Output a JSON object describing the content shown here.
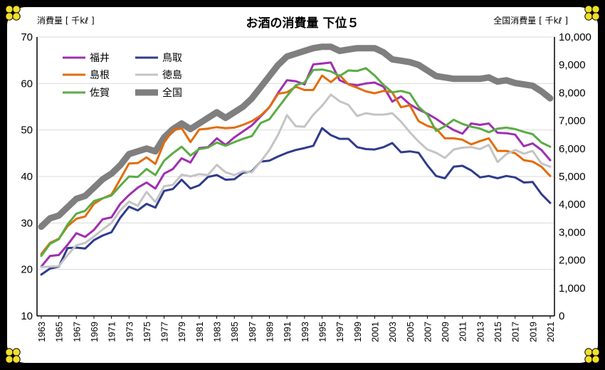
{
  "chart_data": {
    "type": "line",
    "title": "お酒の消費量 下位５",
    "ylabel_left": "消費量 [ 千kℓ ]",
    "ylabel_right": "全国消費量 [ 千kℓ ]",
    "ylim_left": [
      10,
      70
    ],
    "ylim_right": [
      0,
      10000
    ],
    "left_ticks": [
      "10",
      "20",
      "30",
      "40",
      "50",
      "60",
      "70"
    ],
    "right_ticks": [
      "0",
      "1,000",
      "2,000",
      "3,000",
      "4,000",
      "5,000",
      "6,000",
      "7,000",
      "8,000",
      "9,000",
      "10,000"
    ],
    "x_tick_labels": [
      "1963",
      "1965",
      "1967",
      "1969",
      "1971",
      "1973",
      "1975",
      "1977",
      "1979",
      "1981",
      "1983",
      "1985",
      "1987",
      "1989",
      "1991",
      "1993",
      "1995",
      "1997",
      "1999",
      "2001",
      "2003",
      "2005",
      "2007",
      "2009",
      "2011",
      "2013",
      "2015",
      "2017",
      "2019",
      "2021"
    ],
    "grid": true,
    "legend_position": "top-left",
    "x": [
      1963,
      1964,
      1965,
      1966,
      1967,
      1968,
      1969,
      1970,
      1971,
      1972,
      1973,
      1974,
      1975,
      1976,
      1977,
      1978,
      1979,
      1980,
      1981,
      1982,
      1983,
      1984,
      1985,
      1986,
      1987,
      1988,
      1989,
      1990,
      1991,
      1992,
      1993,
      1994,
      1995,
      1996,
      1997,
      1998,
      1999,
      2000,
      2001,
      2002,
      2003,
      2004,
      2005,
      2006,
      2007,
      2008,
      2009,
      2010,
      2011,
      2012,
      2013,
      2014,
      2015,
      2016,
      2017,
      2018,
      2019,
      2020,
      2021
    ],
    "series": [
      {
        "name": "福井",
        "axis": "left",
        "color": "#9e2fb0",
        "values": [
          20.6,
          22.9,
          23.1,
          25.3,
          27.8,
          27.0,
          28.5,
          30.8,
          31.2,
          34.1,
          36.0,
          37.6,
          38.7,
          37.4,
          40.6,
          41.6,
          43.9,
          43.0,
          46.1,
          46.3,
          48.2,
          46.8,
          48.4,
          49.7,
          51.0,
          52.9,
          54.9,
          58.0,
          60.7,
          60.5,
          59.8,
          64.1,
          64.3,
          64.5,
          60.7,
          59.9,
          59.6,
          60.0,
          60.2,
          59.3,
          56.1,
          57.2,
          55.5,
          54.4,
          53.5,
          52.4,
          51.1,
          50.0,
          49.2,
          51.4,
          51.1,
          51.4,
          49.4,
          49.3,
          49.0,
          46.5,
          47.1,
          45.7,
          43.5
        ]
      },
      {
        "name": "島根",
        "axis": "left",
        "color": "#e36c0a",
        "values": [
          23.3,
          25.7,
          26.6,
          29.3,
          30.9,
          31.4,
          34.1,
          35.3,
          36.1,
          39.4,
          42.8,
          42.9,
          44.1,
          42.7,
          47.3,
          49.9,
          50.4,
          47.4,
          50.1,
          50.3,
          50.6,
          50.4,
          50.5,
          51.1,
          51.9,
          53.1,
          54.9,
          57.8,
          58.1,
          59.3,
          58.6,
          58.6,
          61.7,
          60.3,
          61.8,
          59.8,
          59.1,
          58.3,
          57.9,
          58.4,
          58.1,
          54.9,
          55.3,
          51.9,
          50.9,
          50.3,
          48.2,
          48.2,
          47.9,
          46.9,
          47.6,
          48.2,
          45.5,
          45.5,
          45.0,
          43.5,
          43.2,
          42.1,
          40.1
        ]
      },
      {
        "name": "佐賀",
        "axis": "left",
        "color": "#5aac44",
        "values": [
          22.9,
          25.5,
          26.5,
          29.7,
          32.0,
          32.6,
          34.7,
          35.3,
          35.9,
          38.0,
          40.0,
          39.9,
          41.6,
          40.3,
          43.4,
          45.0,
          46.4,
          44.5,
          45.9,
          46.2,
          47.3,
          46.6,
          47.4,
          48.1,
          48.7,
          51.5,
          52.3,
          54.8,
          57.3,
          59.6,
          60.2,
          62.9,
          63.0,
          62.6,
          61.6,
          62.8,
          62.7,
          63.3,
          61.7,
          59.7,
          58.1,
          58.4,
          57.9,
          55.0,
          53.3,
          49.8,
          50.8,
          52.2,
          51.3,
          50.7,
          50.3,
          49.5,
          50.3,
          50.5,
          50.2,
          49.6,
          49.1,
          47.3,
          46.4
        ]
      },
      {
        "name": "鳥取",
        "axis": "left",
        "color": "#2f3b8c",
        "values": [
          18.9,
          20.2,
          20.6,
          24.6,
          24.7,
          24.5,
          26.3,
          27.3,
          28.0,
          31.1,
          33.5,
          32.7,
          34.1,
          33.3,
          36.9,
          37.3,
          39.3,
          37.4,
          38.1,
          39.9,
          40.3,
          39.3,
          39.4,
          40.8,
          41.1,
          43.2,
          43.4,
          44.3,
          45.1,
          45.7,
          46.1,
          46.6,
          50.4,
          48.9,
          48.1,
          48.1,
          46.3,
          45.9,
          45.8,
          46.3,
          47.2,
          45.2,
          45.4,
          45.1,
          42.4,
          40.1,
          39.6,
          42.1,
          42.3,
          41.3,
          39.8,
          40.1,
          39.6,
          40.1,
          39.8,
          38.7,
          38.8,
          36.2,
          34.3
        ]
      },
      {
        "name": "徳島",
        "axis": "left",
        "color": "#c4c4c4",
        "values": [
          20.5,
          20.6,
          20.7,
          23.1,
          25.2,
          25.7,
          27.1,
          28.6,
          30.0,
          32.7,
          34.6,
          33.7,
          36.7,
          34.5,
          37.9,
          38.2,
          40.4,
          40.0,
          40.5,
          40.3,
          42.5,
          40.9,
          40.3,
          41.1,
          40.9,
          43.2,
          45.7,
          49.0,
          53.2,
          50.8,
          50.7,
          53.3,
          55.2,
          57.6,
          56.2,
          55.4,
          53.0,
          53.6,
          53.3,
          53.3,
          53.6,
          51.8,
          49.5,
          47.5,
          45.8,
          45.1,
          44.0,
          45.8,
          46.2,
          46.3,
          45.9,
          46.8,
          43.1,
          44.8,
          45.7,
          44.9,
          45.5,
          42.8,
          42.1
        ]
      },
      {
        "name": "全国",
        "axis": "right",
        "color": "#7f7f7f",
        "values": [
          3200,
          3500,
          3600,
          3900,
          4200,
          4300,
          4600,
          4900,
          5100,
          5400,
          5800,
          5900,
          6000,
          5900,
          6400,
          6700,
          6900,
          6700,
          6900,
          7100,
          7300,
          7100,
          7300,
          7500,
          7800,
          8200,
          8600,
          9000,
          9300,
          9400,
          9500,
          9600,
          9650,
          9650,
          9500,
          9550,
          9600,
          9600,
          9600,
          9450,
          9200,
          9150,
          9100,
          9000,
          8800,
          8600,
          8550,
          8500,
          8500,
          8500,
          8500,
          8550,
          8400,
          8450,
          8350,
          8300,
          8250,
          8050,
          7800
        ]
      }
    ]
  }
}
